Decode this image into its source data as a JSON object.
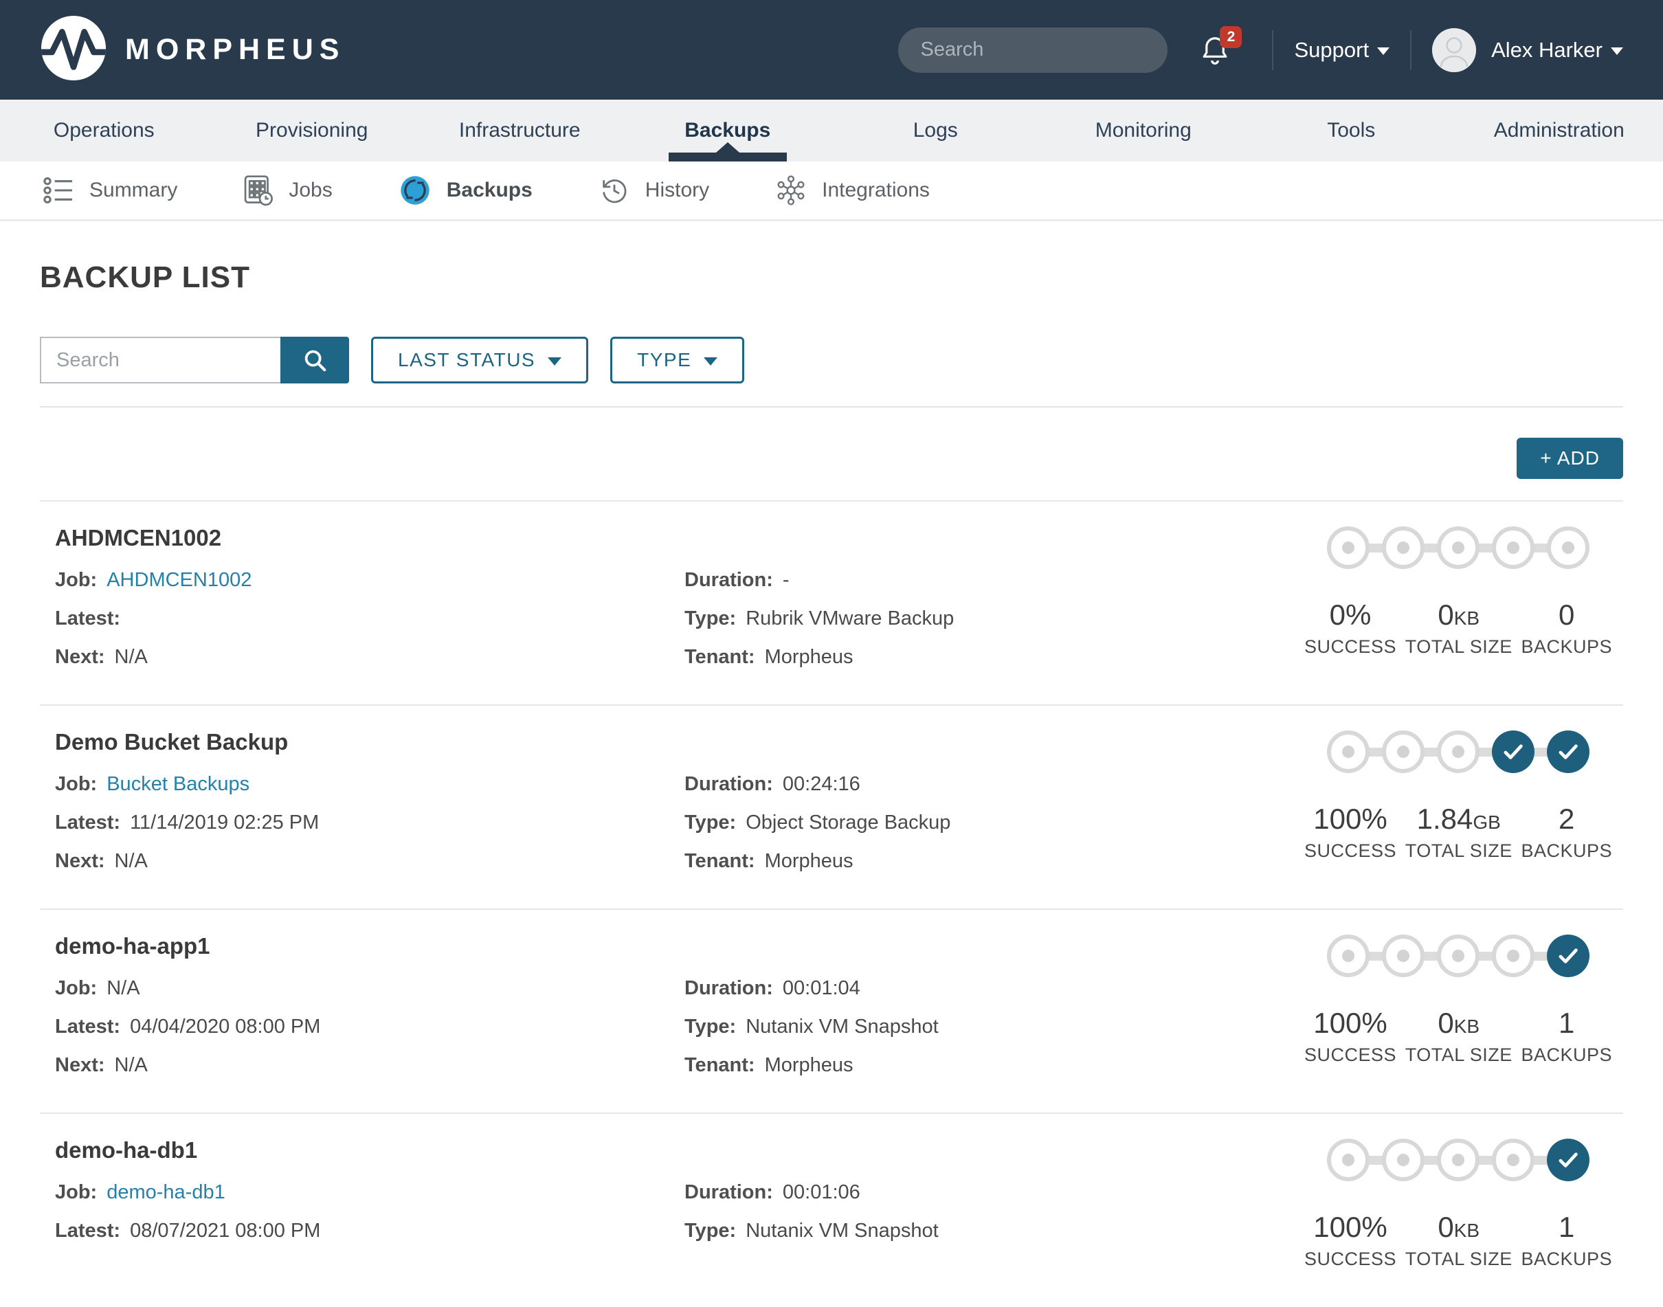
{
  "colors": {
    "header_bg": "#283a4b",
    "nav_bg": "#eef0f2",
    "accent_teal": "#1f6585",
    "check_fill": "#1e5f7e",
    "link_blue": "#2381ad",
    "badge_red": "#c0392b",
    "backups_icon_blue": "#2f9fd8"
  },
  "header": {
    "brand": "MORPHEUS",
    "search_placeholder": "Search",
    "notification_count": "2",
    "support_label": "Support",
    "user_name": "Alex Harker"
  },
  "main_nav": {
    "items": [
      {
        "label": "Operations",
        "active": false
      },
      {
        "label": "Provisioning",
        "active": false
      },
      {
        "label": "Infrastructure",
        "active": false
      },
      {
        "label": "Backups",
        "active": true
      },
      {
        "label": "Logs",
        "active": false
      },
      {
        "label": "Monitoring",
        "active": false
      },
      {
        "label": "Tools",
        "active": false
      },
      {
        "label": "Administration",
        "active": false
      }
    ]
  },
  "sub_nav": {
    "items": [
      {
        "label": "Summary",
        "icon": "list-summary-icon",
        "active": false
      },
      {
        "label": "Jobs",
        "icon": "jobs-grid-icon",
        "active": false
      },
      {
        "label": "Backups",
        "icon": "sync-circle-icon",
        "active": true
      },
      {
        "label": "History",
        "icon": "history-clock-icon",
        "active": false
      },
      {
        "label": "Integrations",
        "icon": "hub-nodes-icon",
        "active": false
      }
    ]
  },
  "page": {
    "title": "BACKUP LIST",
    "search_placeholder": "Search",
    "last_status_label": "LAST STATUS",
    "type_label": "TYPE",
    "add_button_label": "+ ADD"
  },
  "stats_labels": {
    "success": "SUCCESS",
    "total_size": "TOTAL SIZE",
    "backups": "BACKUPS"
  },
  "backups": [
    {
      "name": "AHDMCEN1002",
      "rows_left": [
        {
          "label": "Job:",
          "value": "AHDMCEN1002",
          "link": true
        },
        {
          "label": "Latest:",
          "value": "",
          "link": false
        },
        {
          "label": "Next:",
          "value": "N/A",
          "link": false
        }
      ],
      "rows_right": [
        {
          "label": "Duration:",
          "value": "-"
        },
        {
          "label": "Type:",
          "value": "Rubrik VMware Backup"
        },
        {
          "label": "Tenant:",
          "value": "Morpheus"
        }
      ],
      "stats": {
        "success": "0%",
        "size_value": "0",
        "size_unit": "KB",
        "count": "0"
      },
      "checks_filled": 0
    },
    {
      "name": "Demo Bucket Backup",
      "rows_left": [
        {
          "label": "Job:",
          "value": "Bucket Backups",
          "link": true
        },
        {
          "label": "Latest:",
          "value": "11/14/2019 02:25 PM",
          "link": false
        },
        {
          "label": "Next:",
          "value": "N/A",
          "link": false
        }
      ],
      "rows_right": [
        {
          "label": "Duration:",
          "value": "00:24:16"
        },
        {
          "label": "Type:",
          "value": "Object Storage Backup"
        },
        {
          "label": "Tenant:",
          "value": "Morpheus"
        }
      ],
      "stats": {
        "success": "100%",
        "size_value": "1.84",
        "size_unit": "GB",
        "count": "2"
      },
      "checks_filled": 2
    },
    {
      "name": "demo-ha-app1",
      "rows_left": [
        {
          "label": "Job:",
          "value": "N/A",
          "link": false
        },
        {
          "label": "Latest:",
          "value": "04/04/2020 08:00 PM",
          "link": false
        },
        {
          "label": "Next:",
          "value": "N/A",
          "link": false
        }
      ],
      "rows_right": [
        {
          "label": "Duration:",
          "value": "00:01:04"
        },
        {
          "label": "Type:",
          "value": "Nutanix VM Snapshot"
        },
        {
          "label": "Tenant:",
          "value": "Morpheus"
        }
      ],
      "stats": {
        "success": "100%",
        "size_value": "0",
        "size_unit": "KB",
        "count": "1"
      },
      "checks_filled": 1
    },
    {
      "name": "demo-ha-db1",
      "rows_left": [
        {
          "label": "Job:",
          "value": "demo-ha-db1",
          "link": true
        },
        {
          "label": "Latest:",
          "value": "08/07/2021 08:00 PM",
          "link": false
        }
      ],
      "rows_right": [
        {
          "label": "Duration:",
          "value": "00:01:06"
        },
        {
          "label": "Type:",
          "value": "Nutanix VM Snapshot"
        }
      ],
      "stats": {
        "success": "100%",
        "size_value": "0",
        "size_unit": "KB",
        "count": "1"
      },
      "checks_filled": 1
    }
  ]
}
